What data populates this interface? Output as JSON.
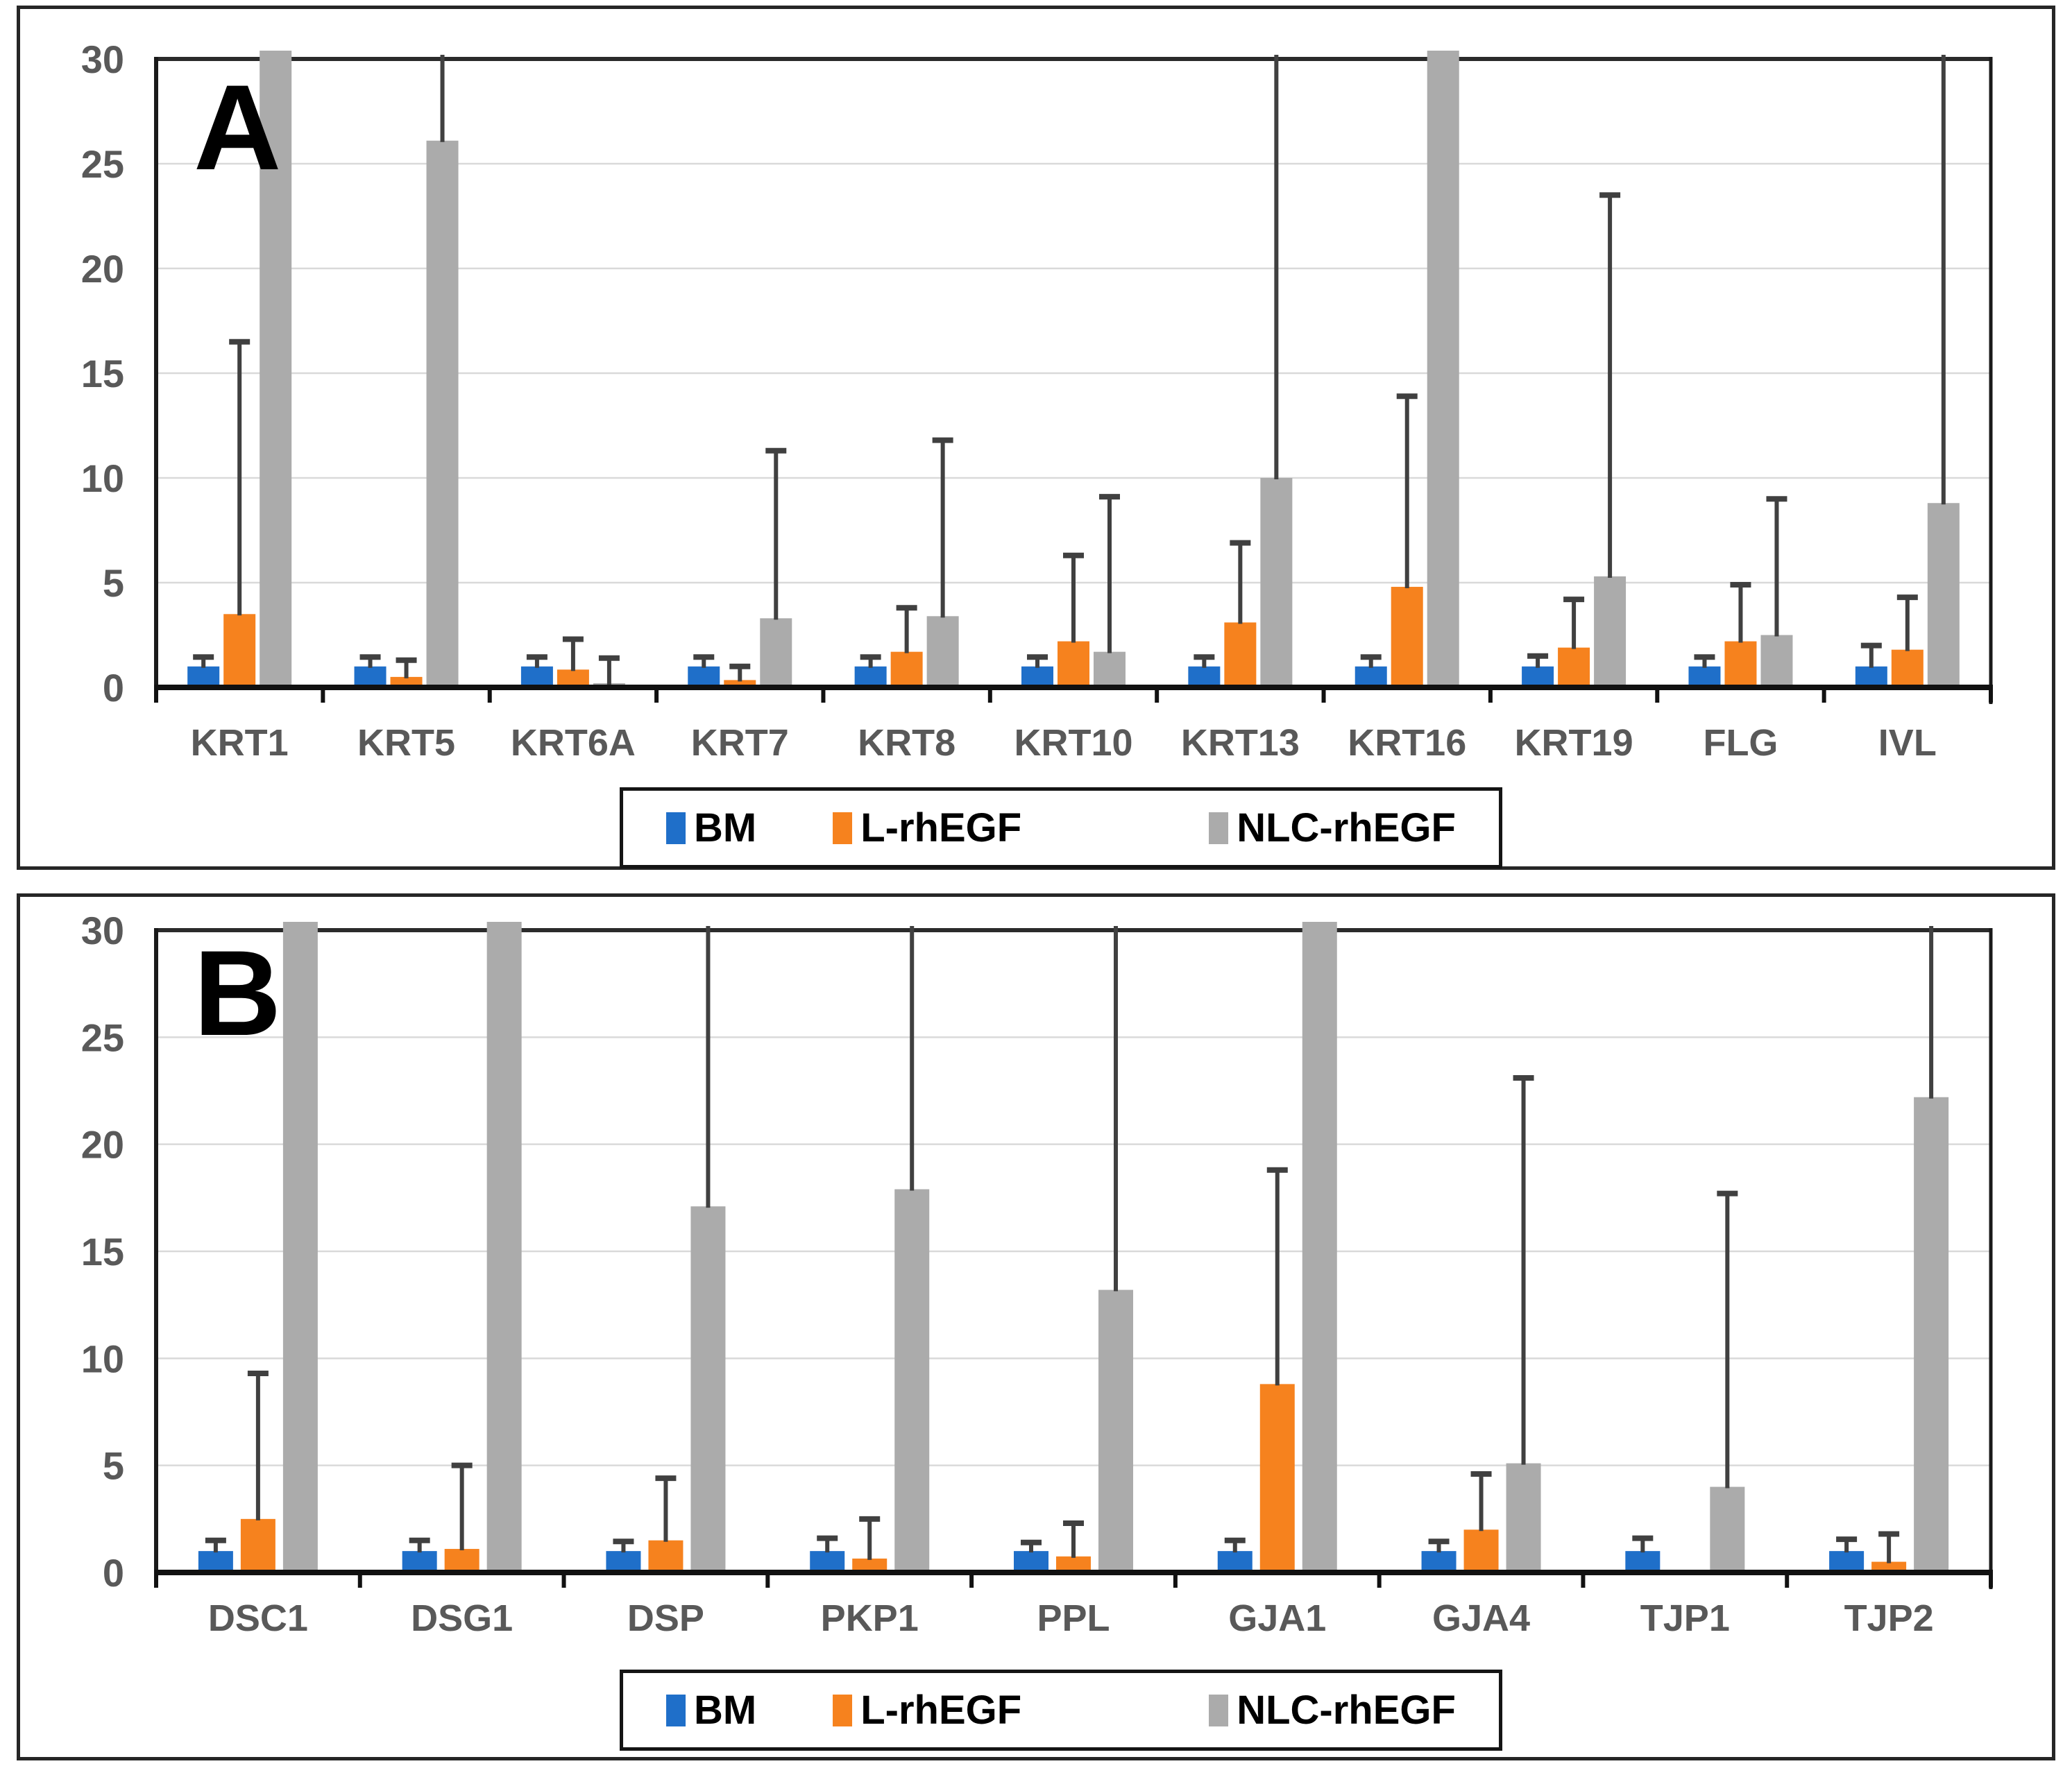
{
  "figure": {
    "background": "#ffffff",
    "panel_border_color": "#262626"
  },
  "colors": {
    "bm_blue": "#1F6FC9",
    "l_rhegf_orange": "#F6821E",
    "nlc_rhegf_gray": "#ABABAB",
    "error_bar": "#404040",
    "gridline": "#D9D9D9",
    "axis": "#111111",
    "tick_label": "#595959"
  },
  "legend": {
    "items": [
      {
        "label": "BM",
        "color": "#1F6FC9"
      },
      {
        "label": "L-rhEGF",
        "color": "#F6821E"
      },
      {
        "label": "NLC-rhEGF",
        "color": "#ABABAB"
      }
    ]
  },
  "chart_data": [
    {
      "type": "bar",
      "panel_label": "A",
      "title": "",
      "xlabel": "",
      "ylabel": "",
      "ylim": [
        0,
        30
      ],
      "yticks": [
        0,
        5,
        10,
        15,
        20,
        25,
        30
      ],
      "grid": "horizontal",
      "legend_position": "bottom",
      "note": "clipped:true means the bar extends beyond the 30 axis maximum; error_top values above 30 are whiskers clipped at the top edge (no cap drawn)",
      "categories": [
        "KRT1",
        "KRT5",
        "KRT6A",
        "KRT7",
        "KRT8",
        "KRT10",
        "KRT13",
        "KRT16",
        "KRT19",
        "FLG",
        "IVL"
      ],
      "series": [
        {
          "name": "BM",
          "color": "#1F6FC9",
          "values": [
            1.0,
            1.0,
            1.0,
            1.0,
            1.0,
            1.0,
            1.0,
            1.0,
            1.0,
            1.0,
            1.0
          ],
          "error_top": [
            1.45,
            1.45,
            1.45,
            1.45,
            1.45,
            1.45,
            1.45,
            1.45,
            1.5,
            1.45,
            2.0
          ],
          "clipped": [
            false,
            false,
            false,
            false,
            false,
            false,
            false,
            false,
            false,
            false,
            false
          ]
        },
        {
          "name": "L-rhEGF",
          "color": "#F6821E",
          "values": [
            3.5,
            0.5,
            0.85,
            0.35,
            1.7,
            2.2,
            3.1,
            4.8,
            1.9,
            2.2,
            1.8
          ],
          "error_top": [
            16.5,
            1.3,
            2.3,
            1.0,
            3.8,
            6.3,
            6.9,
            13.9,
            4.2,
            4.9,
            4.3
          ],
          "clipped": [
            false,
            false,
            false,
            false,
            false,
            false,
            false,
            false,
            false,
            false,
            false
          ]
        },
        {
          "name": "NLC-rhEGF",
          "color": "#ABABAB",
          "values": [
            30,
            26.1,
            0.2,
            3.3,
            3.4,
            1.7,
            10.0,
            30,
            5.3,
            2.5,
            8.8
          ],
          "error_top": [
            null,
            32,
            1.4,
            11.3,
            11.8,
            9.1,
            32,
            null,
            23.5,
            9.0,
            32
          ],
          "clipped": [
            true,
            false,
            false,
            false,
            false,
            false,
            false,
            true,
            false,
            false,
            false
          ]
        }
      ]
    },
    {
      "type": "bar",
      "panel_label": "B",
      "title": "",
      "xlabel": "",
      "ylabel": "",
      "ylim": [
        0,
        30
      ],
      "yticks": [
        0,
        5,
        10,
        15,
        20,
        25,
        30
      ],
      "grid": "horizontal",
      "legend_position": "bottom",
      "note": "clipped:true means the bar extends beyond the 30 axis maximum; error_top values above 30 are whiskers clipped at the top edge (no cap drawn)",
      "categories": [
        "DSC1",
        "DSG1",
        "DSP",
        "PKP1",
        "PPL",
        "GJA1",
        "GJA4",
        "TJP1",
        "TJP2"
      ],
      "series": [
        {
          "name": "BM",
          "color": "#1F6FC9",
          "values": [
            1.0,
            1.0,
            1.0,
            1.0,
            1.0,
            1.0,
            1.0,
            1.0,
            1.0
          ],
          "error_top": [
            1.5,
            1.5,
            1.45,
            1.6,
            1.4,
            1.5,
            1.45,
            1.6,
            1.55
          ],
          "clipped": [
            false,
            false,
            false,
            false,
            false,
            false,
            false,
            false,
            false
          ]
        },
        {
          "name": "L-rhEGF",
          "color": "#F6821E",
          "values": [
            2.5,
            1.1,
            1.5,
            0.65,
            0.75,
            8.8,
            2.0,
            0.07,
            0.5
          ],
          "error_top": [
            9.3,
            5.0,
            4.4,
            2.5,
            2.3,
            18.8,
            4.6,
            null,
            1.8
          ],
          "clipped": [
            false,
            false,
            false,
            false,
            false,
            false,
            false,
            false,
            false
          ]
        },
        {
          "name": "NLC-rhEGF",
          "color": "#ABABAB",
          "values": [
            30,
            30,
            17.1,
            17.9,
            13.2,
            30,
            5.1,
            4.0,
            22.2
          ],
          "error_top": [
            null,
            null,
            32,
            32,
            32,
            null,
            23.1,
            17.7,
            32
          ],
          "clipped": [
            true,
            true,
            false,
            false,
            false,
            true,
            false,
            false,
            false
          ]
        }
      ]
    }
  ]
}
